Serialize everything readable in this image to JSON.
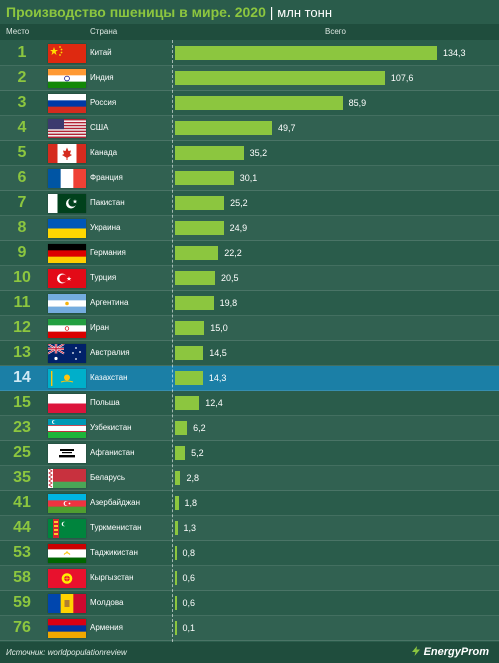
{
  "header": {
    "title": "Производство пшеницы в мире. 2020",
    "separator": "|",
    "unit": "млн тонн",
    "col_rank": "Место",
    "col_country": "Страна",
    "col_value": "Всего"
  },
  "colors": {
    "background": "#2a5c4b",
    "bar": "#8cc63f",
    "highlight": "#1b7fa6",
    "rank": "#8cc63f"
  },
  "chart_data": {
    "type": "bar",
    "orientation": "horizontal",
    "title": "Производство пшеницы в мире. 2020",
    "unit": "млн тонн",
    "categories": [
      "Китай",
      "Индия",
      "Россия",
      "США",
      "Канада",
      "Франция",
      "Пакистан",
      "Украина",
      "Германия",
      "Турция",
      "Аргентина",
      "Иран",
      "Австралия",
      "Казахстан",
      "Польша",
      "Узбекистан",
      "Афганистан",
      "Беларусь",
      "Азербайджан",
      "Туркменистан",
      "Таджикистан",
      "Кыргызстан",
      "Молдова",
      "Армения"
    ],
    "values": [
      134.3,
      107.6,
      85.9,
      49.7,
      35.2,
      30.1,
      25.2,
      24.9,
      22.2,
      20.5,
      19.8,
      15.0,
      14.5,
      14.3,
      12.4,
      6.2,
      5.2,
      2.8,
      1.8,
      1.3,
      0.8,
      0.6,
      0.6,
      0.1
    ],
    "xlim": [
      0,
      134.3
    ],
    "grid": false,
    "legend": "none"
  },
  "rows": [
    {
      "rank": "1",
      "country": "Китай",
      "value": "134,3",
      "flag": "china-flag-icon"
    },
    {
      "rank": "2",
      "country": "Индия",
      "value": "107,6",
      "flag": "india-flag-icon"
    },
    {
      "rank": "3",
      "country": "Россия",
      "value": "85,9",
      "flag": "russia-flag-icon"
    },
    {
      "rank": "4",
      "country": "США",
      "value": "49,7",
      "flag": "usa-flag-icon"
    },
    {
      "rank": "5",
      "country": "Канада",
      "value": "35,2",
      "flag": "canada-flag-icon"
    },
    {
      "rank": "6",
      "country": "Франция",
      "value": "30,1",
      "flag": "france-flag-icon"
    },
    {
      "rank": "7",
      "country": "Пакистан",
      "value": "25,2",
      "flag": "pakistan-flag-icon"
    },
    {
      "rank": "8",
      "country": "Украина",
      "value": "24,9",
      "flag": "ukraine-flag-icon"
    },
    {
      "rank": "9",
      "country": "Германия",
      "value": "22,2",
      "flag": "germany-flag-icon"
    },
    {
      "rank": "10",
      "country": "Турция",
      "value": "20,5",
      "flag": "turkey-flag-icon"
    },
    {
      "rank": "11",
      "country": "Аргентина",
      "value": "19,8",
      "flag": "argentina-flag-icon"
    },
    {
      "rank": "12",
      "country": "Иран",
      "value": "15,0",
      "flag": "iran-flag-icon"
    },
    {
      "rank": "13",
      "country": "Австралия",
      "value": "14,5",
      "flag": "australia-flag-icon"
    },
    {
      "rank": "14",
      "country": "Казахстан",
      "value": "14,3",
      "flag": "kazakhstan-flag-icon",
      "highlight": true
    },
    {
      "rank": "15",
      "country": "Польша",
      "value": "12,4",
      "flag": "poland-flag-icon"
    },
    {
      "rank": "23",
      "country": "Узбекистан",
      "value": "6,2",
      "flag": "uzbekistan-flag-icon"
    },
    {
      "rank": "25",
      "country": "Афганистан",
      "value": "5,2",
      "flag": "afghanistan-flag-icon"
    },
    {
      "rank": "35",
      "country": "Беларусь",
      "value": "2,8",
      "flag": "belarus-flag-icon"
    },
    {
      "rank": "41",
      "country": "Азербайджан",
      "value": "1,8",
      "flag": "azerbaijan-flag-icon"
    },
    {
      "rank": "44",
      "country": "Туркменистан",
      "value": "1,3",
      "flag": "turkmenistan-flag-icon"
    },
    {
      "rank": "53",
      "country": "Таджикистан",
      "value": "0,8",
      "flag": "tajikistan-flag-icon"
    },
    {
      "rank": "58",
      "country": "Кыргызстан",
      "value": "0,6",
      "flag": "kyrgyzstan-flag-icon"
    },
    {
      "rank": "59",
      "country": "Молдова",
      "value": "0,6",
      "flag": "moldova-flag-icon"
    },
    {
      "rank": "76",
      "country": "Армения",
      "value": "0,1",
      "flag": "armenia-flag-icon"
    }
  ],
  "footer": {
    "source": "Источник: worldpopulationreview",
    "brand": "EnergyProm",
    "brand_icon": "lightning-icon"
  }
}
